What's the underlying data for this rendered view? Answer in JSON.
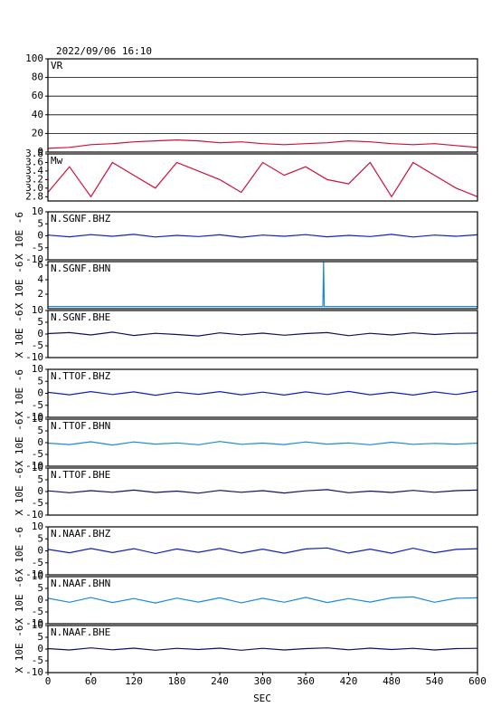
{
  "chart_data": [
    {
      "type": "line",
      "title": "2022/09/06 16:10",
      "panel": "VR",
      "grid": true,
      "ylim": [
        0,
        100
      ],
      "yticks": [
        0,
        20,
        40,
        60,
        80,
        100
      ],
      "x": [
        0,
        30,
        60,
        90,
        120,
        150,
        180,
        210,
        240,
        270,
        300,
        330,
        360,
        390,
        420,
        450,
        480,
        510,
        540,
        570,
        600
      ],
      "series": [
        {
          "color": "#d0103a",
          "values": [
            4,
            5,
            8,
            9,
            11,
            12,
            13,
            12,
            10,
            11,
            9,
            8,
            9,
            10,
            12,
            11,
            9,
            8,
            9,
            7,
            5
          ]
        }
      ]
    },
    {
      "type": "line",
      "panel": "Mw",
      "ylim": [
        2.7,
        3.8
      ],
      "yticks": [
        2.8,
        {
          "value": 3,
          "label": "3.0"
        },
        3.2,
        3.4,
        3.6,
        3.8
      ],
      "x": [
        0,
        30,
        60,
        90,
        120,
        150,
        180,
        210,
        240,
        270,
        300,
        330,
        360,
        390,
        420,
        450,
        480,
        510,
        540,
        570,
        600
      ],
      "series": [
        {
          "color": "#d0103a",
          "values": [
            2.9,
            3.5,
            2.8,
            3.6,
            3.3,
            3.0,
            3.6,
            3.4,
            3.2,
            2.9,
            3.6,
            3.3,
            3.5,
            3.2,
            3.1,
            3.6,
            2.8,
            3.6,
            3.3,
            3.0,
            2.8
          ]
        }
      ]
    },
    {
      "type": "line",
      "panel": "N.SGNF.BHZ",
      "ylabel": "X 10E -6",
      "ylim": [
        -10,
        10
      ],
      "yticks": [
        -10,
        -5,
        0,
        5,
        10
      ],
      "x": [
        0,
        30,
        60,
        90,
        120,
        150,
        180,
        210,
        240,
        270,
        300,
        330,
        360,
        390,
        420,
        450,
        480,
        510,
        540,
        570,
        600
      ],
      "series": [
        {
          "color": "#1020c0",
          "values": [
            0.3,
            -0.4,
            0.5,
            -0.2,
            0.6,
            -0.5,
            0.2,
            -0.3,
            0.4,
            -0.6,
            0.3,
            -0.2,
            0.5,
            -0.4,
            0.2,
            -0.3,
            0.6,
            -0.5,
            0.3,
            -0.2,
            0.4
          ]
        }
      ]
    },
    {
      "type": "line",
      "panel": "N.SGNF.BHN",
      "ylabel": "X 10E -6",
      "ylim": [
        0,
        6.5
      ],
      "yticks": [
        2,
        4,
        6
      ],
      "x": [
        0,
        100,
        200,
        300,
        384,
        385,
        386,
        450,
        600
      ],
      "series": [
        {
          "color": "#1a8ad8",
          "values": [
            0.3,
            0.3,
            0.3,
            0.3,
            0.3,
            6.5,
            0.3,
            0.3,
            0.3
          ]
        }
      ]
    },
    {
      "type": "line",
      "panel": "N.SGNF.BHE",
      "ylabel": "X 10E -6",
      "ylim": [
        -10,
        10
      ],
      "yticks": [
        -10,
        -5,
        0,
        5,
        10
      ],
      "x": [
        0,
        30,
        60,
        90,
        120,
        150,
        180,
        210,
        240,
        270,
        300,
        330,
        360,
        390,
        420,
        450,
        480,
        510,
        540,
        570,
        600
      ],
      "series": [
        {
          "color": "#101060",
          "values": [
            0.2,
            0.6,
            -0.4,
            0.8,
            -0.6,
            0.3,
            -0.2,
            -0.8,
            0.5,
            -0.3,
            0.4,
            -0.5,
            0.2,
            0.6,
            -0.7,
            0.3,
            -0.4,
            0.5,
            -0.2,
            0.3,
            0.4
          ]
        }
      ]
    },
    {
      "type": "line",
      "panel": "N.TTOF.BHZ",
      "ylabel": "X 10E -6",
      "ylim": [
        -10,
        10
      ],
      "yticks": [
        -10,
        -5,
        0,
        5,
        10
      ],
      "x": [
        0,
        30,
        60,
        90,
        120,
        150,
        180,
        210,
        240,
        270,
        300,
        330,
        360,
        390,
        420,
        450,
        480,
        510,
        540,
        570,
        600
      ],
      "series": [
        {
          "color": "#1020c0",
          "values": [
            0.4,
            -0.6,
            0.7,
            -0.5,
            0.6,
            -0.8,
            0.5,
            -0.4,
            0.7,
            -0.6,
            0.5,
            -0.7,
            0.6,
            -0.5,
            0.8,
            -0.6,
            0.4,
            -0.7,
            0.6,
            -0.5,
            0.9
          ]
        }
      ]
    },
    {
      "type": "line",
      "panel": "N.TTOF.BHN",
      "ylabel": "X 10E -6",
      "ylim": [
        -10,
        10
      ],
      "yticks": [
        -10,
        -5,
        0,
        5,
        10
      ],
      "x": [
        0,
        30,
        60,
        90,
        120,
        150,
        180,
        210,
        240,
        270,
        300,
        330,
        360,
        390,
        420,
        450,
        480,
        510,
        540,
        570,
        600
      ],
      "series": [
        {
          "color": "#1a8ad8",
          "values": [
            -0.2,
            -0.8,
            0.4,
            -1.0,
            0.3,
            -0.6,
            -0.1,
            -0.9,
            0.5,
            -0.7,
            -0.2,
            -0.8,
            0.3,
            -0.6,
            -0.1,
            -0.9,
            0.2,
            -0.7,
            -0.3,
            -0.6,
            -0.2
          ]
        }
      ]
    },
    {
      "type": "line",
      "panel": "N.TTOF.BHE",
      "ylabel": "X 10E -6",
      "ylim": [
        -10,
        10
      ],
      "yticks": [
        -10,
        -5,
        0,
        5,
        10
      ],
      "x": [
        0,
        30,
        60,
        90,
        120,
        150,
        180,
        210,
        240,
        270,
        300,
        330,
        360,
        390,
        420,
        450,
        480,
        510,
        540,
        570,
        600
      ],
      "series": [
        {
          "color": "#101060",
          "values": [
            0.3,
            -0.5,
            0.4,
            -0.3,
            0.6,
            -0.4,
            0.2,
            -0.7,
            0.5,
            -0.3,
            0.4,
            -0.6,
            0.3,
            0.8,
            -0.5,
            0.2,
            -0.4,
            0.5,
            -0.3,
            0.4,
            0.6
          ]
        }
      ]
    },
    {
      "type": "line",
      "panel": "N.NAAF.BHZ",
      "ylabel": "X 10E -6",
      "ylim": [
        -10,
        10
      ],
      "yticks": [
        -10,
        -5,
        0,
        5,
        10
      ],
      "x": [
        0,
        30,
        60,
        90,
        120,
        150,
        180,
        210,
        240,
        270,
        300,
        330,
        360,
        390,
        420,
        450,
        480,
        510,
        540,
        570,
        600
      ],
      "series": [
        {
          "color": "#1020c0",
          "values": [
            0.6,
            -0.8,
            1.0,
            -0.7,
            0.9,
            -1.1,
            0.8,
            -0.6,
            1.0,
            -0.9,
            0.7,
            -1.0,
            0.8,
            1.2,
            -0.9,
            0.7,
            -1.0,
            1.1,
            -0.8,
            0.6,
            0.9
          ]
        }
      ]
    },
    {
      "type": "line",
      "panel": "N.NAAF.BHN",
      "ylabel": "X 10E -6",
      "ylim": [
        -10,
        10
      ],
      "yticks": [
        -10,
        -5,
        0,
        5,
        10
      ],
      "x": [
        0,
        30,
        60,
        90,
        120,
        150,
        180,
        210,
        240,
        270,
        300,
        330,
        360,
        390,
        420,
        450,
        480,
        510,
        540,
        570,
        600
      ],
      "series": [
        {
          "color": "#1a8ad8",
          "values": [
            0.8,
            -0.9,
            1.1,
            -1.0,
            0.7,
            -1.2,
            0.9,
            -0.8,
            1.0,
            -1.1,
            0.8,
            -0.9,
            1.2,
            -1.0,
            0.7,
            -0.8,
            1.0,
            1.4,
            -0.9,
            0.8,
            1.0
          ]
        }
      ]
    },
    {
      "type": "line",
      "panel": "N.NAAF.BHE",
      "ylabel": "X 10E -6",
      "ylim": [
        -10,
        10
      ],
      "yticks": [
        -10,
        -5,
        0,
        5,
        10
      ],
      "xlim": [
        0,
        600
      ],
      "xticks": [
        0,
        60,
        120,
        180,
        240,
        300,
        360,
        420,
        480,
        540,
        600
      ],
      "xlabel": "SEC",
      "x": [
        0,
        30,
        60,
        90,
        120,
        150,
        180,
        210,
        240,
        270,
        300,
        330,
        360,
        390,
        420,
        450,
        480,
        510,
        540,
        570,
        600
      ],
      "series": [
        {
          "color": "#101060",
          "values": [
            0.2,
            -0.4,
            0.5,
            -0.3,
            0.4,
            -0.5,
            0.3,
            -0.2,
            0.4,
            -0.5,
            0.3,
            -0.4,
            0.2,
            0.5,
            -0.3,
            0.4,
            -0.2,
            0.3,
            -0.4,
            0.2,
            0.3
          ]
        }
      ]
    }
  ]
}
